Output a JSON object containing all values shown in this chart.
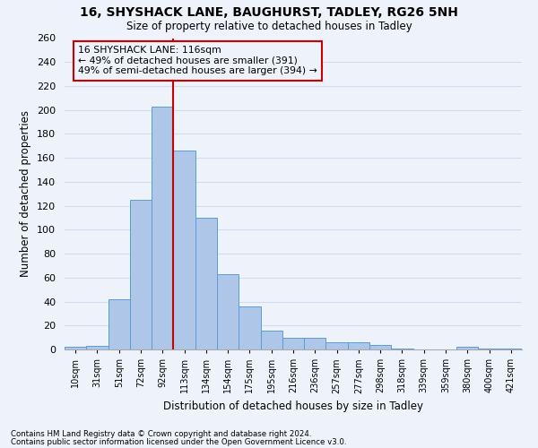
{
  "title1": "16, SHYSHACK LANE, BAUGHURST, TADLEY, RG26 5NH",
  "title2": "Size of property relative to detached houses in Tadley",
  "xlabel": "Distribution of detached houses by size in Tadley",
  "ylabel": "Number of detached properties",
  "footnote1": "Contains HM Land Registry data © Crown copyright and database right 2024.",
  "footnote2": "Contains public sector information licensed under the Open Government Licence v3.0.",
  "categories": [
    "10sqm",
    "31sqm",
    "51sqm",
    "72sqm",
    "92sqm",
    "113sqm",
    "134sqm",
    "154sqm",
    "175sqm",
    "195sqm",
    "216sqm",
    "236sqm",
    "257sqm",
    "277sqm",
    "298sqm",
    "318sqm",
    "339sqm",
    "359sqm",
    "380sqm",
    "400sqm",
    "421sqm"
  ],
  "values": [
    2,
    3,
    42,
    125,
    203,
    166,
    110,
    63,
    36,
    16,
    10,
    10,
    6,
    6,
    4,
    1,
    0,
    0,
    2,
    1,
    1
  ],
  "bar_color": "#aec6e8",
  "bar_edge_color": "#5b9bd5",
  "grid_color": "#d0ddf0",
  "background_color": "#eef3fb",
  "vline_color": "#cc0000",
  "vline_bar_index": 4,
  "annotation_title": "16 SHYSHACK LANE: 116sqm",
  "annotation_line1": "← 49% of detached houses are smaller (391)",
  "annotation_line2": "49% of semi-detached houses are larger (394) →",
  "annotation_box_color": "#cc0000",
  "ylim": [
    0,
    260
  ],
  "yticks": [
    0,
    20,
    40,
    60,
    80,
    100,
    120,
    140,
    160,
    180,
    200,
    220,
    240,
    260
  ]
}
